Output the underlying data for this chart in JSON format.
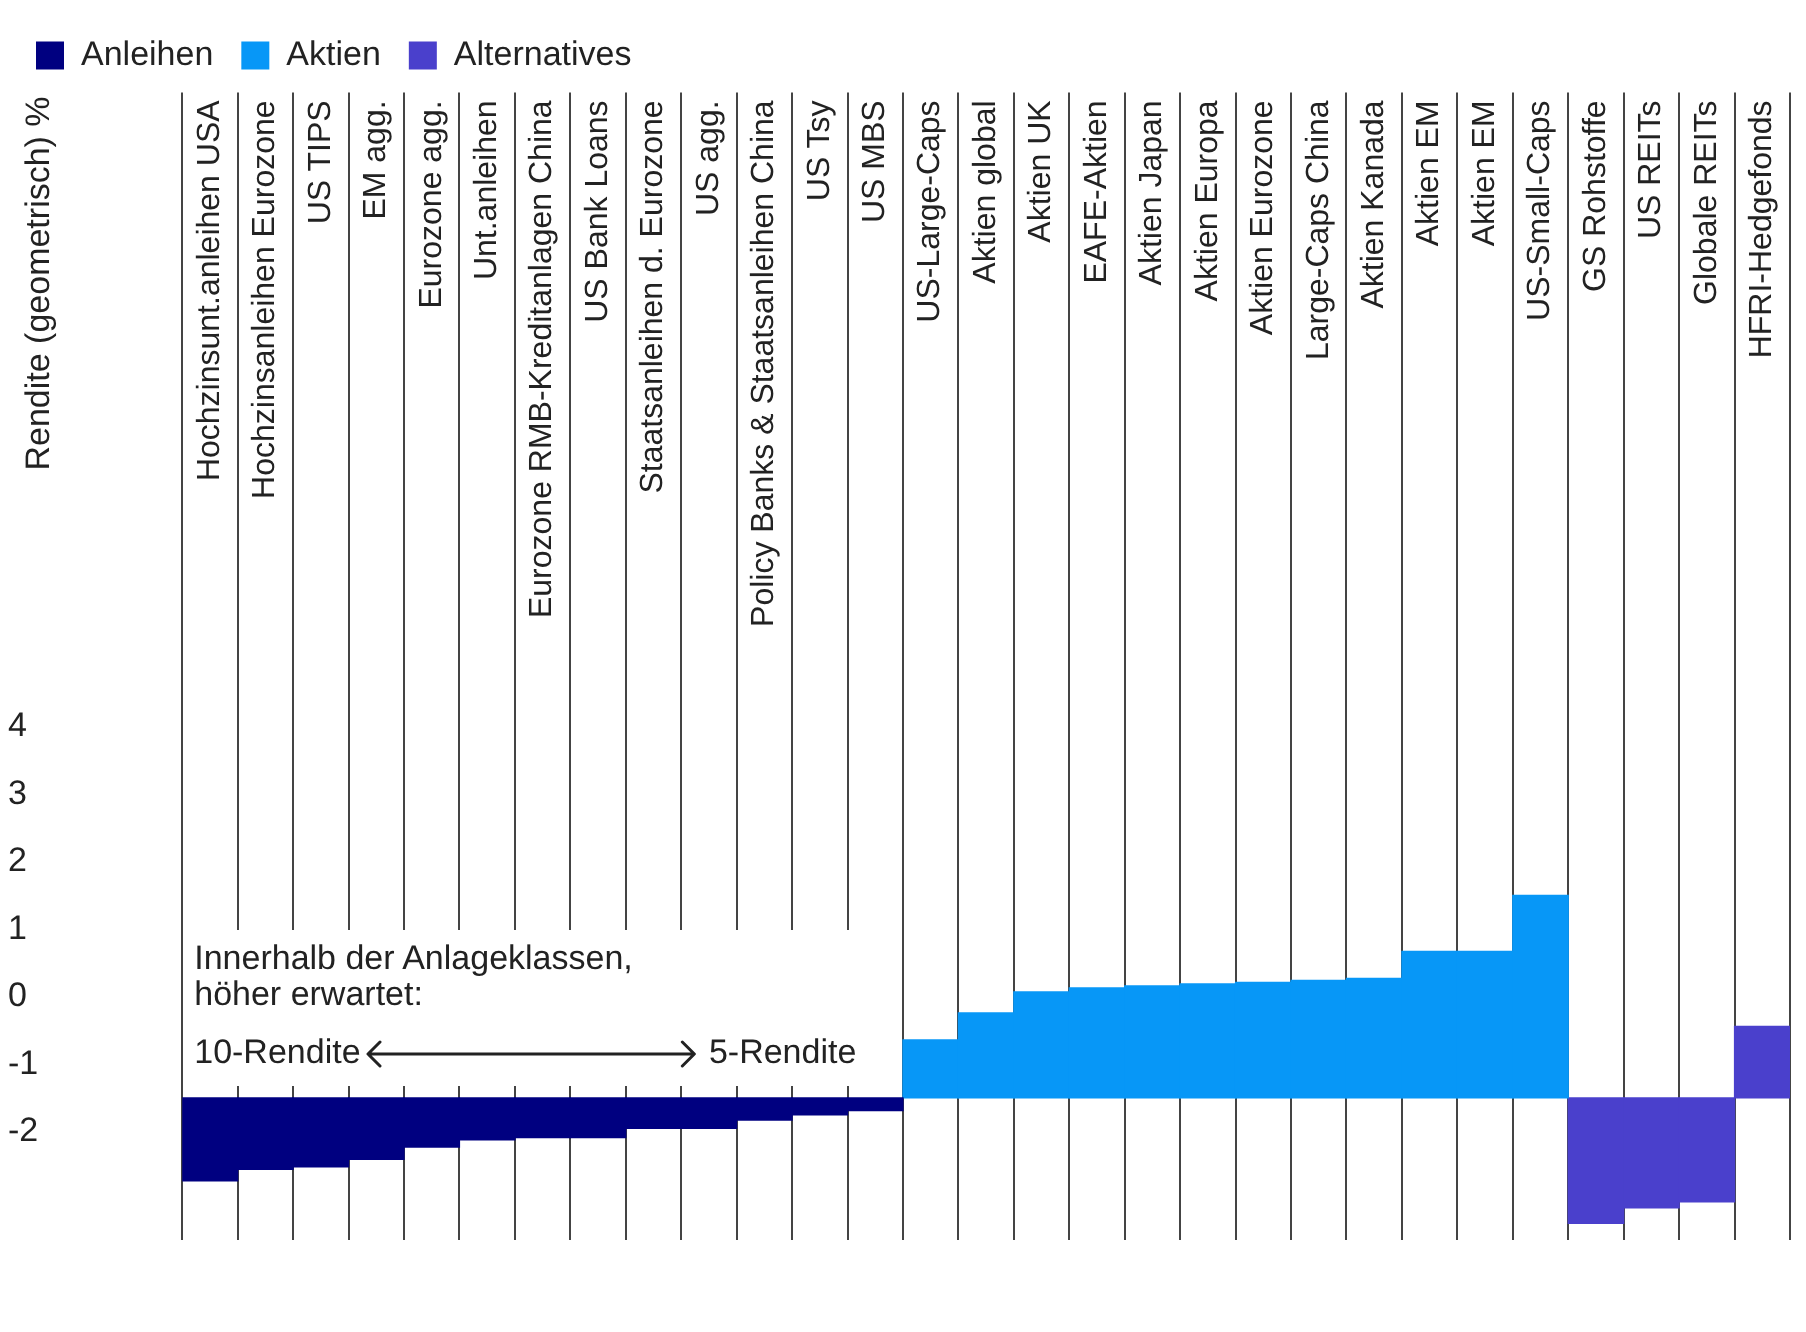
{
  "chart_data": {
    "type": "bar",
    "ylabel": "Rendite (geometrisch) %",
    "categories": [
      "Hochzinsunt.anleihen USA",
      "Hochzinsanleihen Eurozone",
      "US TIPS",
      "EM agg.",
      "Eurozone agg.",
      "Unt.anleihen",
      "Eurozone RMB-Kreditanlagen China",
      "US Bank Loans",
      "Staatsanleihen d. Eurozone",
      "US agg.",
      "Policy Banks & Staatsanleihen China",
      "US Tsy",
      "US MBS",
      "US-Large-Caps",
      "Aktien global",
      "Aktien UK",
      "EAFE-Aktien",
      "Aktien Japan",
      "Aktien Europa",
      "Aktien Eurozone",
      "Large-Caps China",
      "Aktien Kanada",
      "Aktien EM",
      "Aktien EM",
      "US-Small-Caps",
      "GS Rohstoffe",
      "US REITs",
      "Globale REITs",
      "HFRI-Hedgefonds"
    ],
    "series": [
      {
        "name": "Anleihen",
        "color": "#000080",
        "base": [
          -1.5,
          -1.5,
          -1.5,
          -1.5,
          -1.5,
          -1.5,
          -1.5,
          -1.5,
          -1.5,
          -1.5,
          -1.5,
          -1.5,
          -1.5,
          null,
          null,
          null,
          null,
          null,
          null,
          null,
          null,
          null,
          null,
          null,
          null,
          null,
          null,
          null,
          null
        ],
        "values": [
          -1.23,
          -1.06,
          -1.02,
          -0.91,
          -0.73,
          -0.62,
          -0.59,
          -0.59,
          -0.45,
          -0.45,
          -0.33,
          -0.25,
          -0.19,
          null,
          null,
          null,
          null,
          null,
          null,
          null,
          null,
          null,
          null,
          null,
          null,
          null,
          null,
          null,
          null
        ]
      },
      {
        "name": "Aktien",
        "color": "#0797f7",
        "base": [
          null,
          null,
          null,
          null,
          null,
          null,
          null,
          null,
          null,
          null,
          null,
          null,
          null,
          -1.5,
          -1.5,
          -1.5,
          -1.5,
          -1.5,
          -1.5,
          -1.5,
          -1.5,
          -1.5,
          -1.5,
          -1.5,
          -1.5,
          null,
          null,
          null,
          null
        ],
        "values": [
          null,
          null,
          null,
          null,
          null,
          null,
          null,
          null,
          null,
          null,
          null,
          null,
          null,
          0.86,
          1.26,
          1.57,
          1.63,
          1.66,
          1.69,
          1.71,
          1.74,
          1.77,
          2.17,
          2.17,
          3.0,
          null,
          null,
          null,
          null
        ]
      },
      {
        "name": "Alternatives",
        "color": "#4a40cc",
        "base": [
          null,
          null,
          null,
          null,
          null,
          null,
          null,
          null,
          null,
          null,
          null,
          null,
          null,
          null,
          null,
          null,
          null,
          null,
          null,
          null,
          null,
          null,
          null,
          null,
          null,
          -1.5,
          -1.5,
          -1.5,
          -1.5
        ],
        "values": [
          null,
          null,
          null,
          null,
          null,
          null,
          null,
          null,
          null,
          null,
          null,
          null,
          null,
          null,
          null,
          null,
          null,
          null,
          null,
          null,
          null,
          null,
          null,
          null,
          null,
          -1.86,
          -1.63,
          -1.54,
          1.06
        ]
      }
    ],
    "ylim": [
      -3.6,
      13.4
    ],
    "yticks": [
      -2,
      -1,
      0,
      1,
      2,
      3,
      4
    ],
    "grid": "x",
    "legend": "top left",
    "annotations": [
      "Innerhalb der Anlageklassen,",
      "höher erwartet:",
      "10-Rendite",
      "5-Rendite"
    ]
  }
}
